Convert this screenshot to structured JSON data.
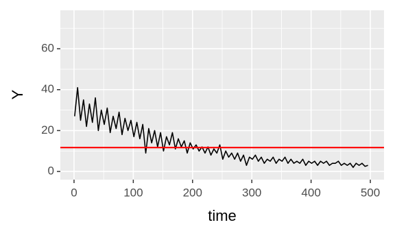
{
  "chart_data": {
    "type": "line",
    "x_label": "time",
    "y_label": "Y",
    "x": [
      1,
      6,
      11,
      16,
      21,
      26,
      31,
      36,
      41,
      46,
      51,
      56,
      61,
      66,
      71,
      76,
      81,
      86,
      91,
      96,
      101,
      106,
      111,
      116,
      121,
      126,
      131,
      136,
      141,
      146,
      151,
      156,
      161,
      166,
      171,
      176,
      181,
      186,
      191,
      196,
      201,
      206,
      211,
      216,
      221,
      226,
      231,
      236,
      241,
      246,
      251,
      256,
      261,
      266,
      271,
      276,
      281,
      286,
      291,
      296,
      301,
      306,
      311,
      316,
      321,
      326,
      331,
      336,
      341,
      346,
      351,
      356,
      361,
      366,
      371,
      376,
      381,
      386,
      391,
      396,
      401,
      406,
      411,
      416,
      421,
      426,
      431,
      436,
      441,
      446,
      451,
      456,
      461,
      466,
      471,
      476,
      481,
      486,
      491,
      496
    ],
    "series": [
      {
        "color": "#000000",
        "values": [
          27,
          41,
          25,
          35,
          22,
          33,
          24,
          36,
          20,
          30,
          23,
          31,
          19,
          27,
          21,
          29,
          18,
          26,
          20,
          25,
          17,
          24,
          16,
          23,
          9,
          21,
          14,
          20,
          12,
          19,
          10,
          17,
          13,
          19,
          11,
          16,
          12,
          15,
          9,
          14,
          11,
          13,
          10,
          12,
          9,
          12,
          8,
          11,
          9,
          13,
          6,
          10,
          7,
          9,
          6,
          9,
          5,
          8,
          3,
          7,
          6,
          8,
          5,
          7,
          4,
          6,
          5,
          7,
          4,
          6,
          5,
          7,
          4,
          6,
          4,
          5,
          4,
          6,
          3,
          5,
          4,
          5,
          3,
          5,
          4,
          5,
          3,
          4,
          4,
          5,
          3,
          4,
          3,
          4,
          2,
          4,
          3,
          4,
          2.5,
          3
        ]
      }
    ],
    "hline": {
      "value": 11.7,
      "color": "#ff0000"
    },
    "xlim": [
      -23.1,
      523.1
    ],
    "xticks": [
      0,
      100,
      200,
      300,
      400,
      500
    ],
    "x_minor_ticks": [
      50,
      150,
      250,
      350,
      450
    ],
    "ylim": [
      -4,
      78.8
    ],
    "yticks": [
      0,
      20,
      40,
      60
    ],
    "y_minor_ticks": [
      10,
      30,
      50,
      70
    ],
    "grid": true
  }
}
